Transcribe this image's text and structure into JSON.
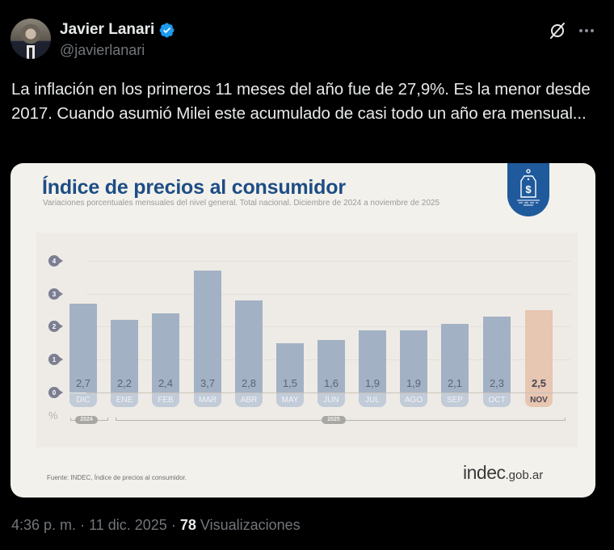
{
  "author": {
    "display_name": "Javier Lanari",
    "handle": "@javierlanari",
    "verified": true,
    "verified_color": "#1d9bf0"
  },
  "actions": {
    "grok_icon": "grok-icon",
    "more_icon": "more-icon"
  },
  "tweet": {
    "text": "La inflación en los primeros 11 meses del año fue de 27,9%. Es la menor desde 2017. Cuando asumió Milei este acumulado de casi todo un año era mensual..."
  },
  "image_card": {
    "title": "Índice de precios al consumidor",
    "subtitle": "Variaciones porcentuales mensuales del nivel general. Total nacional. Diciembre de 2024 a noviembre de 2025",
    "badge_icon": "price-tag-dollar-icon",
    "unit_label": "%",
    "year_labels": [
      "2024",
      "2025"
    ],
    "source": "Fuente: INDEC, Índice de precios al consumidor.",
    "logo_main": "indec",
    "logo_suffix": ".gob.ar",
    "colors": {
      "title": "#1d4d84",
      "bar": "#a3b1c4",
      "bar_highlight": "#e7c6b2",
      "badge": "#1f5a9c"
    }
  },
  "chart_data": {
    "type": "bar",
    "title": "Índice de precios al consumidor",
    "subtitle": "Variaciones porcentuales mensuales del nivel general. Total nacional. Diciembre de 2024 a noviembre de 2025",
    "categories": [
      "DIC",
      "ENE",
      "FEB",
      "MAR",
      "ABR",
      "MAY",
      "JUN",
      "JUL",
      "AGO",
      "SEP",
      "OCT",
      "NOV"
    ],
    "value_labels": [
      "2,7",
      "2,2",
      "2,4",
      "3,7",
      "2,8",
      "1,5",
      "1,6",
      "1,9",
      "1,9",
      "2,1",
      "2,3",
      "2,5"
    ],
    "values": [
      2.7,
      2.2,
      2.4,
      3.7,
      2.8,
      1.5,
      1.6,
      1.9,
      1.9,
      2.1,
      2.3,
      2.5
    ],
    "highlight_index": 11,
    "xlabel": "",
    "ylabel": "%",
    "yticks": [
      "0",
      "1",
      "2",
      "3",
      "4"
    ],
    "ylim": [
      0,
      4
    ],
    "grid": true,
    "year_groups": [
      {
        "label": "2024",
        "categories": [
          "DIC"
        ]
      },
      {
        "label": "2025",
        "categories": [
          "ENE",
          "FEB",
          "MAR",
          "ABR",
          "MAY",
          "JUN",
          "JUL",
          "AGO",
          "SEP",
          "OCT",
          "NOV"
        ]
      }
    ]
  },
  "footer": {
    "time": "4:36 p. m.",
    "separator": "·",
    "date": "11 dic. 2025",
    "views_count": "78",
    "views_label": "Visualizaciones"
  }
}
